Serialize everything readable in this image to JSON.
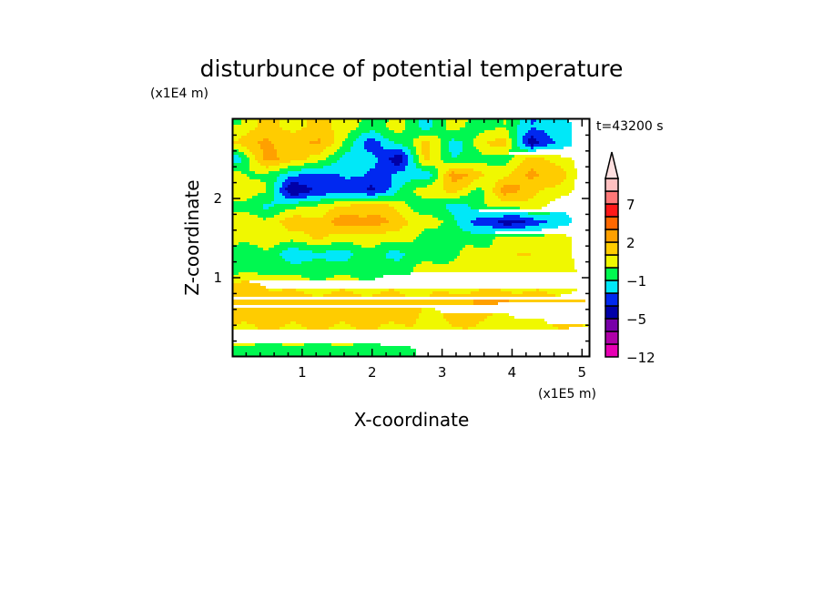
{
  "chart_data": {
    "type": "heatmap",
    "subtype": "filled-contour",
    "title": "disturbunce of potential temperature",
    "xlabel": "X-coordinate",
    "ylabel": "Z-coordinate",
    "x_scale_label": "(x1E5 m)",
    "y_scale_label": "(x1E4 m)",
    "time_label": "t=43200 s",
    "xlim": [
      0,
      5.1
    ],
    "ylim": [
      0,
      3
    ],
    "x_ticks": [
      "1",
      "2",
      "3",
      "4",
      "5"
    ],
    "y_ticks": [
      "1",
      "2"
    ],
    "levels": [
      -12,
      -9,
      -7,
      -5,
      -3,
      -2,
      -1,
      0,
      1,
      2,
      3,
      5,
      7,
      9,
      12
    ],
    "level_colors": [
      "#e800b4",
      "#b000a8",
      "#7800a8",
      "#0000a8",
      "#0028f0",
      "#00e8f8",
      "#00f850",
      "#f0f800",
      "#ffcc00",
      "#ffa000",
      "#ff6800",
      "#ff1818",
      "#ff7878",
      "#ffc0c0"
    ],
    "over_color": "#ffe0e0",
    "colorbar_labels": [
      {
        "value": -12,
        "text": "−12"
      },
      {
        "value": -5,
        "text": "−5"
      },
      {
        "value": -1,
        "text": "−1"
      },
      {
        "value": 2,
        "text": "2"
      },
      {
        "value": 7,
        "text": "7"
      }
    ],
    "grid_x": [
      0.1,
      0.48,
      0.86,
      1.24,
      1.62,
      2.0,
      2.38,
      2.76,
      3.14,
      3.52,
      3.9,
      4.28,
      4.66,
      5.04
    ],
    "grid_z": [
      2.9,
      2.7,
      2.5,
      2.3,
      2.1,
      1.9,
      1.7,
      1.5,
      1.3,
      1.1,
      0.9,
      0.7,
      0.5,
      0.3,
      0.1
    ],
    "values": [
      [
        0,
        1.5,
        0.5,
        1.5,
        0.5,
        -0.5,
        0.5,
        -1.5,
        0.5,
        -0.5,
        0,
        -2,
        -1.5,
        -0.5
      ],
      [
        1,
        2.5,
        1.5,
        2.5,
        -0.5,
        -2.5,
        -1,
        1.5,
        -1.5,
        0.5,
        1.5,
        -4,
        -1.5,
        -0.5
      ],
      [
        -1.5,
        2.5,
        1.5,
        0.5,
        -1.5,
        -1.5,
        -4,
        1.5,
        -1,
        -0.5,
        -0.5,
        1.5,
        0.5,
        -0.5
      ],
      [
        0.5,
        -0.5,
        -1.5,
        -2.5,
        -1.5,
        -2.5,
        -1.5,
        -2,
        2.5,
        1.5,
        0.5,
        2.5,
        1.5,
        -0.5
      ],
      [
        1,
        0,
        -4,
        -3,
        -2.5,
        -3.5,
        -1,
        0.5,
        1.5,
        -0.5,
        2.5,
        1.5,
        0.5,
        -0.5
      ],
      [
        -0.5,
        -1,
        -0.5,
        0.5,
        1,
        2,
        0.5,
        -0.5,
        -1.5,
        -0.5,
        0.5,
        0.5,
        -0.5,
        -0.5
      ],
      [
        0.5,
        0.5,
        1.5,
        1.5,
        2.5,
        2.5,
        1.5,
        0.5,
        -0.5,
        -2.5,
        -3.5,
        -3,
        -1.5,
        -0.5
      ],
      [
        0.5,
        0.5,
        0.5,
        1,
        0.5,
        0.5,
        0.5,
        -0.5,
        -0.5,
        -0.5,
        0.5,
        0.5,
        0.5,
        -0.5
      ],
      [
        -0.5,
        -0.5,
        -1.5,
        -1.5,
        -1.2,
        -0.5,
        -1.2,
        -0.5,
        -0.5,
        0.5,
        0.5,
        1.2,
        0.5,
        -0.5
      ],
      [
        -0.5,
        -0.3,
        -0.5,
        -0.5,
        -0.5,
        -0.5,
        -0.5,
        0.5,
        0.5,
        0.5,
        0.5,
        0.5,
        0.5,
        -0.3
      ],
      [
        1.2,
        1.2,
        0.5,
        0.5,
        0.5,
        0.5,
        0.5,
        0.5,
        0.5,
        0.5,
        0.5,
        0.5,
        0.5,
        0.5
      ],
      [
        1.5,
        1.5,
        1.5,
        1.5,
        1.5,
        1.5,
        1.5,
        1.2,
        1.5,
        2.2,
        2.2,
        1.5,
        1.5,
        2
      ],
      [
        1.5,
        1.5,
        1.5,
        1.5,
        1.5,
        1.5,
        1.5,
        0.5,
        1.5,
        1.5,
        0.5,
        1.2,
        1.5,
        2
      ],
      [
        0.7,
        0.7,
        0.7,
        0.7,
        0.7,
        0.7,
        0.7,
        0.5,
        0.5,
        0.5,
        0.5,
        0.5,
        0.5,
        0.5
      ],
      [
        -0.3,
        -0.3,
        -0.3,
        -0.3,
        -0.3,
        -0.3,
        -0.3,
        0.5,
        0.5,
        0.5,
        0.5,
        0.5,
        0.5,
        0.5
      ]
    ]
  }
}
